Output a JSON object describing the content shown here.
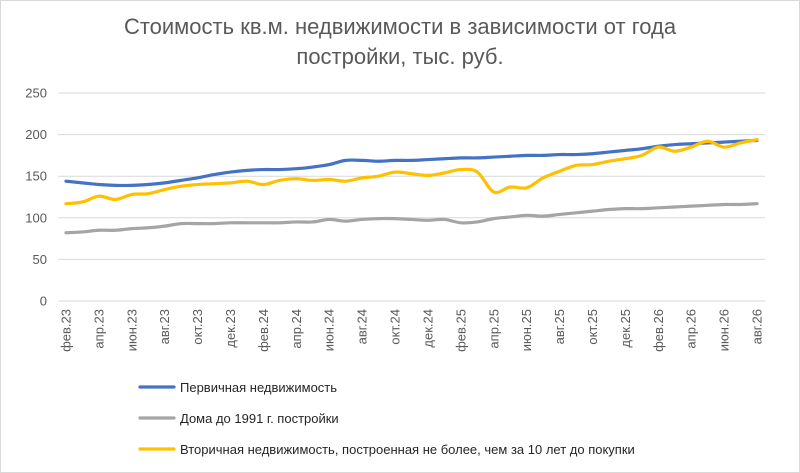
{
  "chart_data": {
    "type": "line",
    "title_line1": "Стоимость кв.м. недвижимости в зависимости от года",
    "title_line2": "постройки, тыс. руб.",
    "xlabel": "",
    "ylabel": "",
    "ylim": [
      0,
      250
    ],
    "yticks": [
      0,
      50,
      100,
      150,
      200,
      250
    ],
    "grid": true,
    "legend_position": "bottom",
    "x": [
      "фев.23",
      "мар.23",
      "апр.23",
      "май.23",
      "июн.23",
      "июл.23",
      "авг.23",
      "сен.23",
      "окт.23",
      "ноя.23",
      "дек.23",
      "янв.24",
      "фев.24",
      "мар.24",
      "апр.24",
      "май.24",
      "июн.24",
      "июл.24",
      "авг.24",
      "сен.24",
      "окт.24",
      "ноя.24",
      "дек.24",
      "янв.25",
      "фев.25",
      "мар.25",
      "апр.25",
      "май.25",
      "июн.25",
      "июл.25",
      "авг.25",
      "сен.25",
      "окт.25",
      "ноя.25",
      "дек.25",
      "янв.26",
      "фев.26",
      "мар.26",
      "апр.26",
      "май.26",
      "июн.26",
      "июл.26",
      "авг.26"
    ],
    "x_tick_labels": [
      "фев.23",
      "",
      "апр.23",
      "",
      "июн.23",
      "",
      "авг.23",
      "",
      "окт.23",
      "",
      "дек.23",
      "",
      "фев.24",
      "",
      "апр.24",
      "",
      "июн.24",
      "",
      "авг.24",
      "",
      "окт.24",
      "",
      "дек.24",
      "",
      "фев.25",
      "",
      "апр.25",
      "",
      "июн.25",
      "",
      "авг.25",
      "",
      "окт.25",
      "",
      "дек.25",
      "",
      "фев.26",
      "",
      "апр.26",
      "",
      "июн.26",
      "",
      "авг.26"
    ],
    "series": [
      {
        "name": "Первичная недвижимость",
        "color": "#4472c4",
        "values": [
          144,
          142,
          140,
          139,
          139,
          140,
          142,
          145,
          148,
          152,
          155,
          157,
          158,
          158,
          159,
          161,
          164,
          169,
          169,
          168,
          169,
          169,
          170,
          171,
          172,
          172,
          173,
          174,
          175,
          175,
          176,
          176,
          177,
          179,
          181,
          183,
          186,
          188,
          189,
          190,
          191,
          192,
          193
        ]
      },
      {
        "name": "Дома до 1991 г. постройки",
        "color": "#a5a5a5",
        "values": [
          82,
          83,
          85,
          85,
          87,
          88,
          90,
          93,
          93,
          93,
          94,
          94,
          94,
          94,
          95,
          95,
          98,
          96,
          98,
          99,
          99,
          98,
          97,
          98,
          94,
          95,
          99,
          101,
          103,
          102,
          104,
          106,
          108,
          110,
          111,
          111,
          112,
          113,
          114,
          115,
          116,
          116,
          117
        ]
      },
      {
        "name": "Вторичная недвижимость, построенная не более, чем за 10 лет до покупки",
        "color": "#ffc000",
        "values": [
          117,
          119,
          126,
          122,
          128,
          129,
          134,
          138,
          140,
          141,
          142,
          144,
          140,
          145,
          147,
          145,
          146,
          144,
          148,
          150,
          155,
          153,
          151,
          154,
          158,
          155,
          131,
          137,
          136,
          148,
          156,
          163,
          164,
          168,
          171,
          175,
          185,
          180,
          185,
          192,
          185,
          190,
          194
        ]
      }
    ]
  }
}
